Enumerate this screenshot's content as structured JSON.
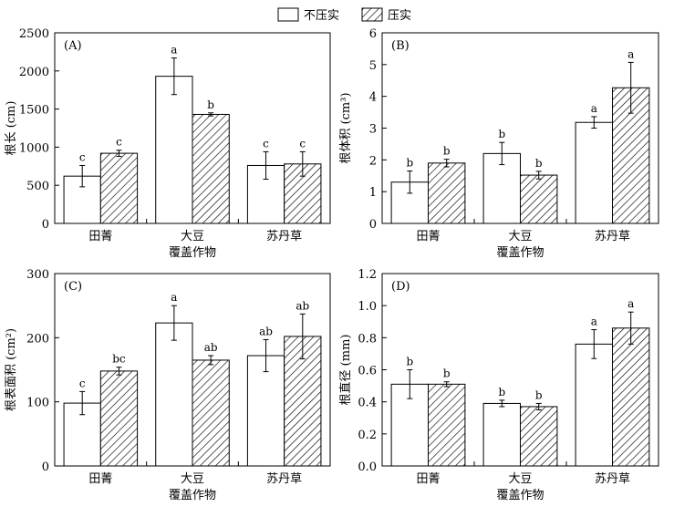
{
  "legend": {
    "items": [
      {
        "label": "不压实",
        "pattern": "solid-white"
      },
      {
        "label": "压实",
        "pattern": "hatched"
      }
    ]
  },
  "chart_data": [
    {
      "type": "bar",
      "panel_label": "(A)",
      "ylabel": "根长 (cm)",
      "xlabel": "覆盖作物",
      "categories": [
        "田菁",
        "大豆",
        "苏丹草"
      ],
      "ylim": [
        0,
        2500
      ],
      "yticks": [
        0,
        500,
        1000,
        1500,
        2000,
        2500
      ],
      "series": [
        {
          "name": "不压实",
          "values": [
            620,
            1930,
            760
          ],
          "errors": [
            140,
            240,
            180
          ],
          "letters": [
            "c",
            "a",
            "c"
          ]
        },
        {
          "name": "压实",
          "values": [
            920,
            1430,
            780
          ],
          "errors": [
            40,
            20,
            160
          ],
          "letters": [
            "c",
            "b",
            "c"
          ]
        }
      ]
    },
    {
      "type": "bar",
      "panel_label": "(B)",
      "ylabel": "根体积 (cm³)",
      "xlabel": "覆盖作物",
      "categories": [
        "田菁",
        "大豆",
        "苏丹草"
      ],
      "ylim": [
        0,
        6
      ],
      "yticks": [
        0,
        1,
        2,
        3,
        4,
        5,
        6
      ],
      "series": [
        {
          "name": "不压实",
          "values": [
            1.3,
            2.2,
            3.18
          ],
          "errors": [
            0.35,
            0.35,
            0.18
          ],
          "letters": [
            "b",
            "b",
            "a"
          ]
        },
        {
          "name": "压实",
          "values": [
            1.9,
            1.52,
            4.27
          ],
          "errors": [
            0.12,
            0.12,
            0.8
          ],
          "letters": [
            "b",
            "b",
            "a"
          ]
        }
      ]
    },
    {
      "type": "bar",
      "panel_label": "(C)",
      "ylabel": "根表面积 (cm²)",
      "xlabel": "覆盖作物",
      "categories": [
        "田菁",
        "大豆",
        "苏丹草"
      ],
      "ylim": [
        0,
        300
      ],
      "yticks": [
        0,
        100,
        200,
        300
      ],
      "series": [
        {
          "name": "不压实",
          "values": [
            98,
            223,
            172
          ],
          "errors": [
            18,
            27,
            25
          ],
          "letters": [
            "c",
            "a",
            "ab"
          ]
        },
        {
          "name": "压实",
          "values": [
            148,
            165,
            202
          ],
          "errors": [
            6,
            7,
            35
          ],
          "letters": [
            "bc",
            "ab",
            "ab"
          ]
        }
      ]
    },
    {
      "type": "bar",
      "panel_label": "(D)",
      "ylabel": "根直径 (mm)",
      "xlabel": "覆盖作物",
      "categories": [
        "田菁",
        "大豆",
        "苏丹草"
      ],
      "ylim": [
        0,
        1.2
      ],
      "yticks": [
        0.0,
        0.2,
        0.4,
        0.6,
        0.8,
        1.0,
        1.2
      ],
      "ytick_labels": [
        "0.0",
        "0.2",
        "0.4",
        "0.6",
        "0.8",
        "1.0",
        "1.2"
      ],
      "series": [
        {
          "name": "不压实",
          "values": [
            0.51,
            0.39,
            0.76
          ],
          "errors": [
            0.09,
            0.02,
            0.09
          ],
          "letters": [
            "b",
            "b",
            "a"
          ]
        },
        {
          "name": "压实",
          "values": [
            0.51,
            0.37,
            0.86
          ],
          "errors": [
            0.015,
            0.02,
            0.1
          ],
          "letters": [
            "b",
            "b",
            "a"
          ]
        }
      ]
    }
  ]
}
